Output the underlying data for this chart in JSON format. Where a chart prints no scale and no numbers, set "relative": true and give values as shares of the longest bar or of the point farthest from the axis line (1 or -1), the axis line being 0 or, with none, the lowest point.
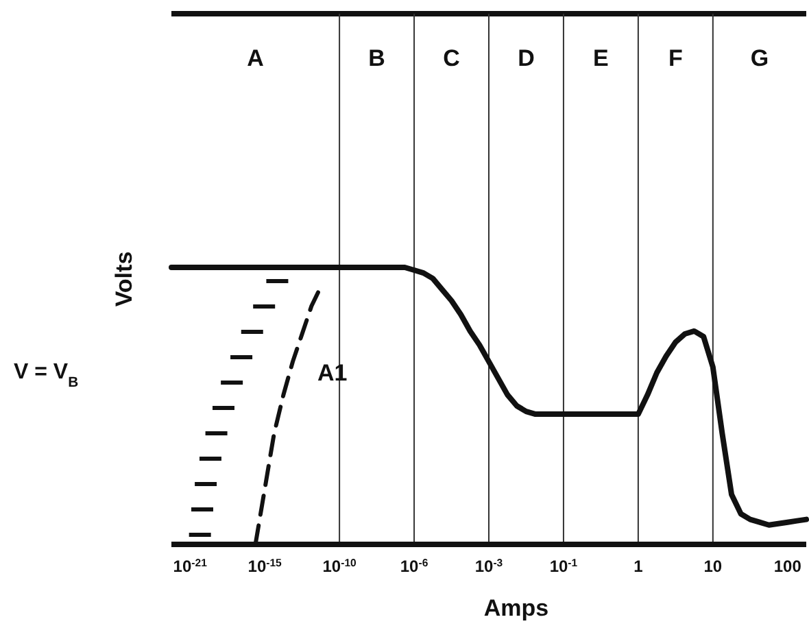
{
  "chart_data": {
    "type": "line",
    "xlabel": "Amps",
    "ylabel": "Volts",
    "relative": true,
    "categories": [
      null,
      null,
      "10$^{-21}$",
      null,
      null,
      null,
      null,
      null,
      null,
      null,
      "10$^{-15}$",
      null,
      null,
      null,
      null,
      null,
      null,
      null,
      "10$^{-10}$",
      null,
      null,
      null,
      null,
      null,
      null,
      null,
      "10$^{-6}$",
      null,
      null,
      null,
      null,
      null,
      null,
      null,
      "10$^{-3}$",
      null,
      null,
      null,
      null,
      null,
      null,
      null,
      "10$^{-1}$",
      null,
      null,
      null,
      null,
      null,
      null,
      null,
      "1",
      null,
      null,
      null,
      null,
      null,
      null,
      null,
      "10",
      null,
      null,
      null,
      null,
      null,
      null,
      null,
      "100",
      null,
      null
    ],
    "ref_lines": [
      {
        "axis": "x",
        "value": "10$^{-10}$"
      },
      {
        "axis": "x",
        "value": "10$^{-6}$"
      },
      {
        "axis": "x",
        "value": "10$^{-3}$"
      },
      {
        "axis": "x",
        "value": "10$^{-1}$"
      },
      {
        "axis": "x",
        "value": "1"
      },
      {
        "axis": "x",
        "value": "10"
      }
    ],
    "annotations": [
      "V = V$_{B}$",
      "A",
      "B",
      "C",
      "D",
      "E",
      "F",
      "G"
    ],
    "series": [
      {
        "color": "#111111",
        "values": [
          1,
          1,
          1,
          1,
          1,
          1,
          1,
          1,
          1,
          1,
          1,
          1,
          1,
          1,
          1,
          1,
          1,
          1,
          1,
          1,
          1,
          1,
          1,
          1,
          1,
          1,
          0.99,
          0.98,
          0.96,
          0.92,
          0.88,
          0.83,
          0.77,
          0.72,
          0.66,
          0.6,
          0.54,
          0.5,
          0.48,
          0.47,
          0.47,
          0.47,
          0.47,
          0.47,
          0.47,
          0.47,
          0.47,
          0.47,
          0.47,
          0.47,
          0.47,
          0.54,
          0.62,
          0.68,
          0.73,
          0.76,
          0.77,
          0.75,
          0.64,
          0.4,
          0.18,
          0.11,
          0.09,
          0.08,
          0.07,
          0.075,
          0.08,
          0.085,
          0.09
        ]
      },
      {
        "name": "A1",
        "color": "#111111",
        "line_style": "dashed",
        "values": [
          null,
          null,
          null,
          null,
          null,
          null,
          null,
          null,
          null,
          0,
          0.2,
          0.4,
          0.54,
          0.66,
          0.76,
          0.86,
          0.93,
          null,
          null,
          null,
          null,
          null,
          null,
          null,
          null,
          null,
          null,
          null,
          null,
          null,
          null,
          null,
          null,
          null,
          null,
          null,
          null,
          null,
          null,
          null,
          null,
          null,
          null,
          null,
          null,
          null,
          null,
          null,
          null,
          null,
          null,
          null,
          null,
          null,
          null,
          null,
          null,
          null,
          null,
          null,
          null,
          null,
          null,
          null,
          null,
          null,
          null,
          null,
          null
        ]
      }
    ]
  }
}
